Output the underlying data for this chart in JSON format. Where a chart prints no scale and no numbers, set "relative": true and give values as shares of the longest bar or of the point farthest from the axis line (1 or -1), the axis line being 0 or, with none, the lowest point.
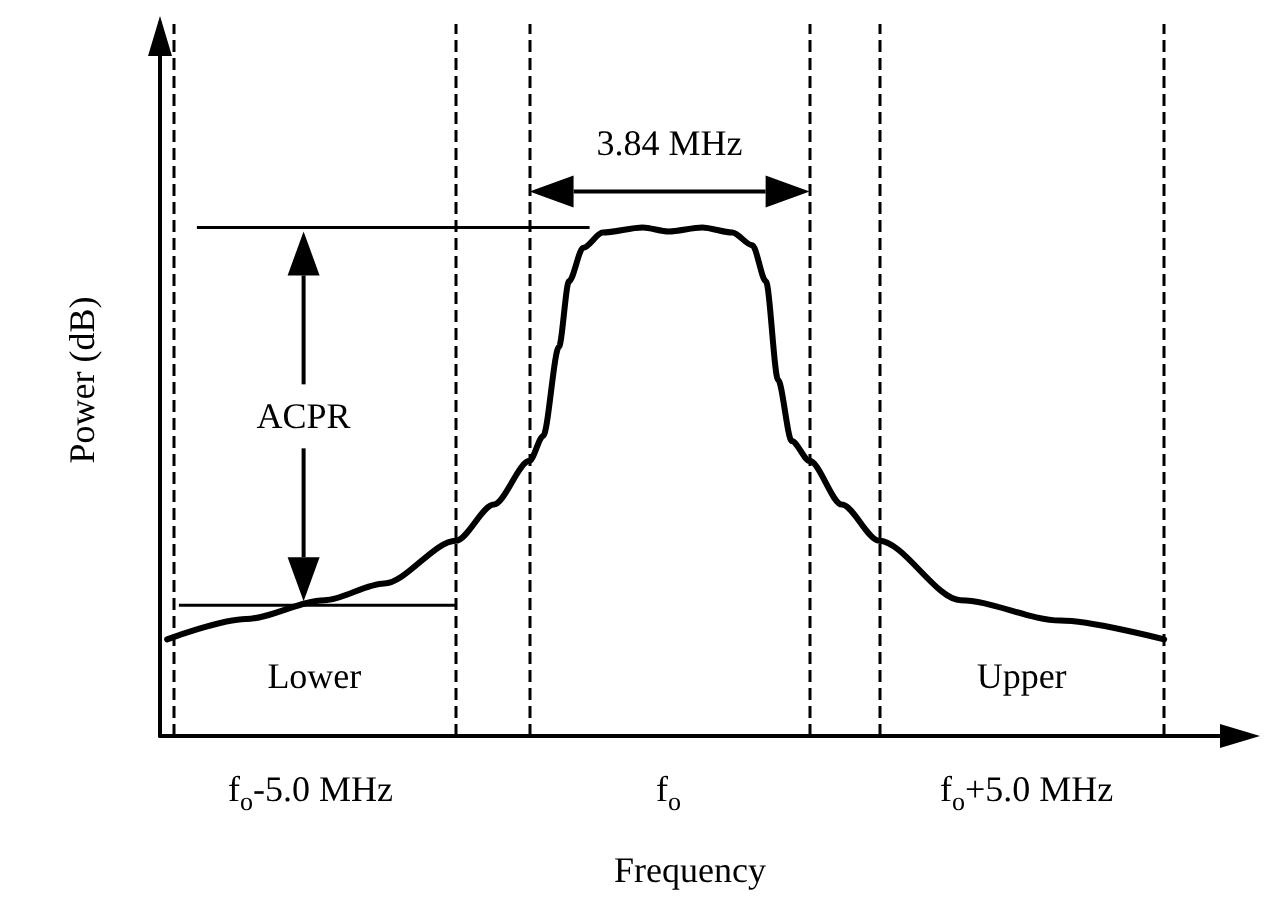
{
  "chart_data": {
    "type": "line",
    "relative": true,
    "xlabel": "Frequency",
    "ylabel": "Power (dB)",
    "xlim": [
      -7.1,
      7.7
    ],
    "xticks": [
      {
        "value": -5,
        "label": "f$_{o}$-5.0 MHz"
      },
      {
        "value": 0,
        "label": "f$_{o}$"
      },
      {
        "value": 5,
        "label": "f$_{o}$+5.0 MHz"
      }
    ],
    "series": [
      {
        "color": "#000000",
        "x": [
          -7.0,
          -5.9,
          -4.8,
          -3.97,
          -2.97,
          -2.44,
          -1.94,
          -1.75,
          -1.53,
          -1.39,
          -1.19,
          -0.92,
          -0.36,
          0,
          0.47,
          0.89,
          1.17,
          1.36,
          1.53,
          1.72,
          1.97,
          2.42,
          2.94,
          4.08,
          5.47,
          6.92
        ],
        "values": [
          0.19,
          0.23,
          0.267,
          0.3,
          0.384,
          0.455,
          0.541,
          0.59,
          0.765,
          0.894,
          0.96,
          0.99,
          1.0,
          0.992,
          1.0,
          0.99,
          0.965,
          0.894,
          0.7,
          0.58,
          0.541,
          0.455,
          0.384,
          0.267,
          0.227,
          0.19
        ]
      }
    ],
    "ref_lines": [
      {
        "axis": "x",
        "value": -6.92,
        "line_style": "dashed",
        "color": "#000000"
      },
      {
        "axis": "x",
        "value": -2.97,
        "line_style": "dashed",
        "color": "#000000"
      },
      {
        "axis": "x",
        "value": -1.94,
        "line_style": "dashed",
        "color": "#000000"
      },
      {
        "axis": "x",
        "value": 1.97,
        "line_style": "dashed",
        "color": "#000000"
      },
      {
        "axis": "x",
        "value": 2.94,
        "line_style": "dashed",
        "color": "#000000"
      },
      {
        "axis": "x",
        "value": 6.92,
        "line_style": "dashed",
        "color": "#000000"
      }
    ],
    "annotations": [
      "3.84 MHz",
      "ACPR",
      "Lower",
      "Upper"
    ],
    "grid": false,
    "marker": "none",
    "line_style": "solid"
  }
}
